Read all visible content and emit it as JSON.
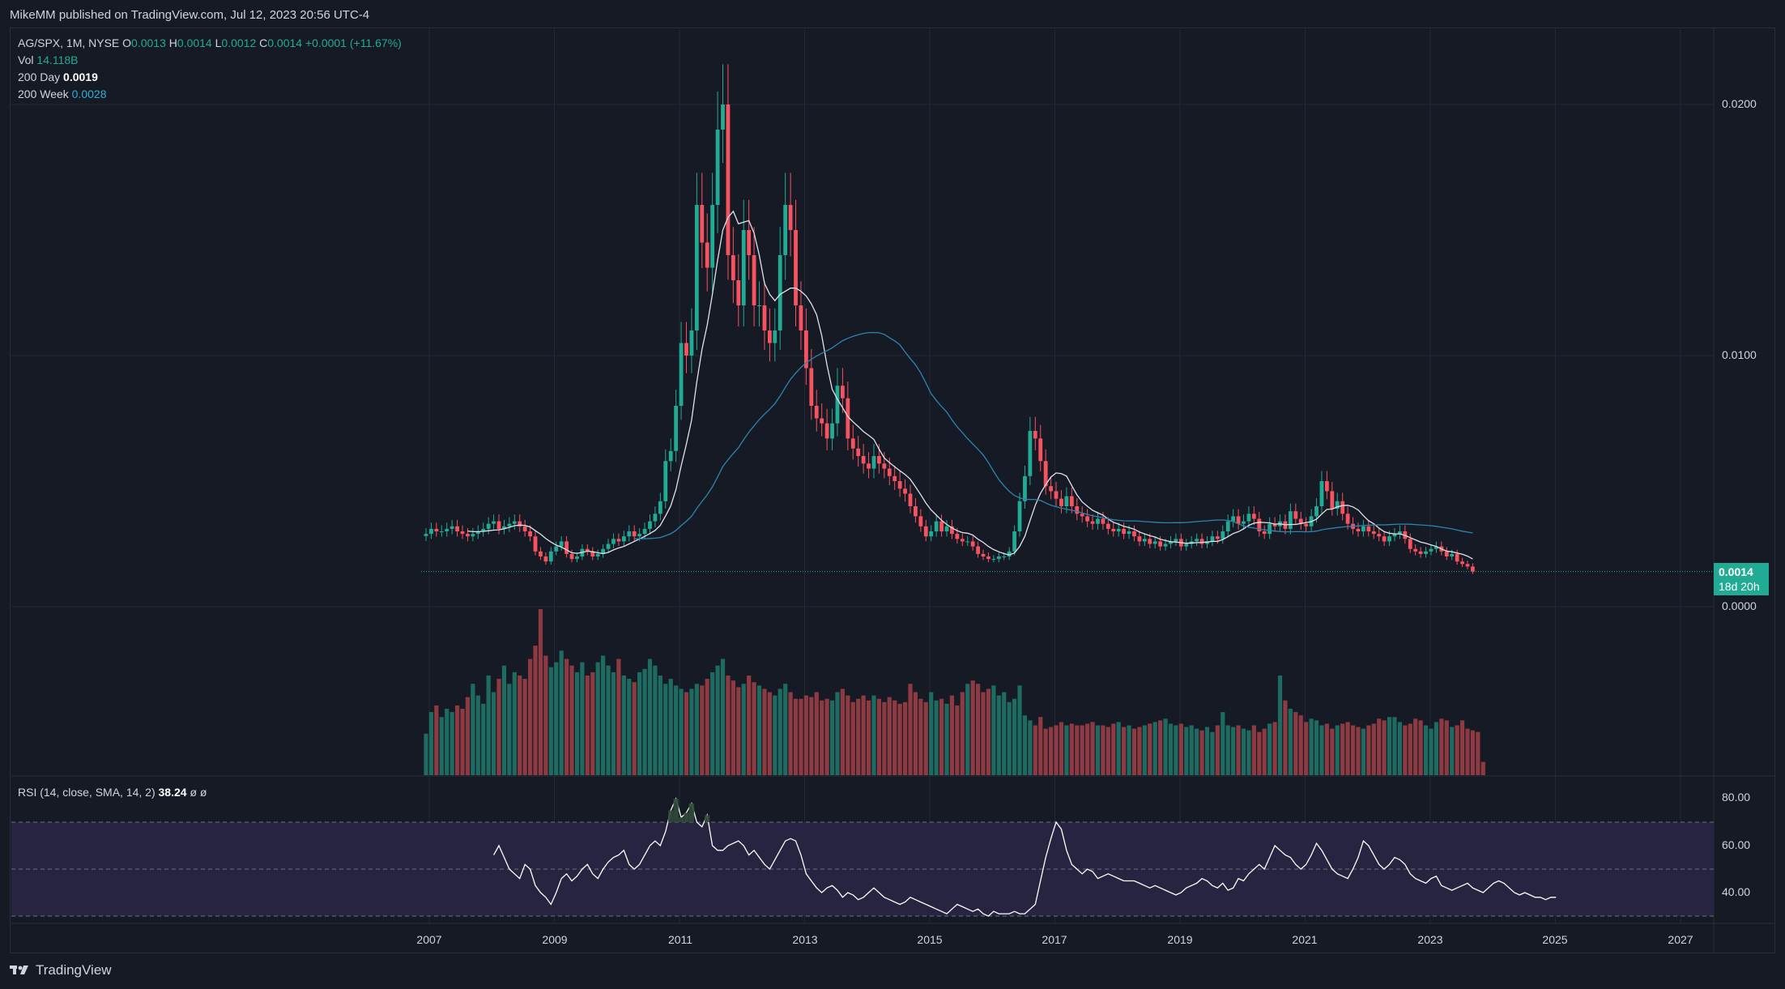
{
  "header": {
    "publish_text": "MikeMM published on TradingView.com, Jul 12, 2023 20:56 UTC-4"
  },
  "legend": {
    "symbol": "AG/SPX, 1M, NYSE",
    "o_label": "O",
    "o_value": "0.0013",
    "h_label": "H",
    "h_value": "0.0014",
    "l_label": "L",
    "l_value": "0.0012",
    "c_label": "C",
    "c_value": "0.0014",
    "change": "+0.0001 (+11.67%)",
    "vol_label": "Vol",
    "vol_value": "14.118B",
    "ma1_label": "200 Day",
    "ma1_value": "0.0019",
    "ma2_label": "200 Week",
    "ma2_value": "0.0028",
    "rsi_label": "RSI (14, close, SMA, 14, 2)",
    "rsi_value": "38.24",
    "rsi_extra": "ø  ø"
  },
  "price_axis": [
    "0.0200",
    "0.0100",
    "0.0000"
  ],
  "rsi_axis": [
    "80.00",
    "60.00",
    "40.00"
  ],
  "time_axis": [
    "2007",
    "2009",
    "2011",
    "2013",
    "2015",
    "2017",
    "2019",
    "2021",
    "2023",
    "2025",
    "2027"
  ],
  "price_badge": {
    "price": "0.0014",
    "countdown": "18d 20h"
  },
  "footer": {
    "brand": "TradingView"
  },
  "colors": {
    "up": "#22ab94",
    "down": "#f7525f",
    "vol_up": "#1e6b62",
    "vol_down": "#8e3a43",
    "ma_short": "#e0e3eb",
    "ma_long": "#2a86b0",
    "rsi_line": "#ffffff",
    "rsi_band": "#262440"
  },
  "chart_data": {
    "type": "candlestick",
    "symbol": "AG/SPX",
    "interval": "1M",
    "ylim": [
      0.0,
      0.021
    ],
    "x_range": [
      "2006-12",
      "2027-06"
    ],
    "close": [
      0.0029,
      0.0031,
      0.003,
      0.003,
      0.0031,
      0.0032,
      0.003,
      0.0029,
      0.0028,
      0.0029,
      0.003,
      0.0031,
      0.0033,
      0.0034,
      0.0031,
      0.0032,
      0.0033,
      0.0034,
      0.0032,
      0.003,
      0.0028,
      0.0022,
      0.002,
      0.0018,
      0.0022,
      0.0024,
      0.0026,
      0.0021,
      0.0019,
      0.002,
      0.0023,
      0.0022,
      0.002,
      0.0021,
      0.0023,
      0.0025,
      0.0027,
      0.0026,
      0.0028,
      0.003,
      0.0028,
      0.0029,
      0.0031,
      0.0034,
      0.0037,
      0.0042,
      0.0058,
      0.0062,
      0.008,
      0.0105,
      0.01,
      0.011,
      0.016,
      0.0145,
      0.0135,
      0.016,
      0.019,
      0.02,
      0.014,
      0.013,
      0.012,
      0.015,
      0.014,
      0.012,
      0.012,
      0.011,
      0.0105,
      0.011,
      0.014,
      0.016,
      0.015,
      0.012,
      0.011,
      0.0095,
      0.008,
      0.0075,
      0.0073,
      0.0067,
      0.0073,
      0.0088,
      0.0083,
      0.0067,
      0.0063,
      0.006,
      0.0057,
      0.0055,
      0.006,
      0.0057,
      0.0055,
      0.0052,
      0.005,
      0.0047,
      0.0045,
      0.004,
      0.0036,
      0.0032,
      0.0028,
      0.003,
      0.0034,
      0.003,
      0.0032,
      0.0029,
      0.0027,
      0.0026,
      0.0026,
      0.0024,
      0.0021,
      0.002,
      0.0019,
      0.0019,
      0.002,
      0.002,
      0.0022,
      0.003,
      0.0042,
      0.0052,
      0.007,
      0.0067,
      0.0058,
      0.0048,
      0.0046,
      0.0043,
      0.004,
      0.0044,
      0.004,
      0.0037,
      0.0036,
      0.0034,
      0.0033,
      0.0035,
      0.0033,
      0.0031,
      0.003,
      0.0031,
      0.0029,
      0.003,
      0.0028,
      0.0026,
      0.0027,
      0.0025,
      0.0026,
      0.0024,
      0.0025,
      0.0026,
      0.0027,
      0.0024,
      0.0025,
      0.0026,
      0.0027,
      0.0025,
      0.0026,
      0.0028,
      0.0027,
      0.003,
      0.0034,
      0.0036,
      0.0033,
      0.0034,
      0.0037,
      0.0035,
      0.003,
      0.0029,
      0.0033,
      0.0032,
      0.0034,
      0.0031,
      0.0038,
      0.0035,
      0.0033,
      0.0032,
      0.0036,
      0.004,
      0.005,
      0.0046,
      0.0039,
      0.0042,
      0.0037,
      0.0033,
      0.0031,
      0.003,
      0.0032,
      0.003,
      0.0029,
      0.0028,
      0.0026,
      0.0028,
      0.0029,
      0.003,
      0.0027,
      0.0023,
      0.0022,
      0.0021,
      0.0022,
      0.0023,
      0.0024,
      0.0022,
      0.002,
      0.0021,
      0.0018,
      0.0017,
      0.0016,
      0.0014
    ],
    "volume_relative": [
      0.25,
      0.38,
      0.42,
      0.35,
      0.4,
      0.38,
      0.42,
      0.4,
      0.47,
      0.55,
      0.48,
      0.43,
      0.6,
      0.5,
      0.58,
      0.66,
      0.55,
      0.62,
      0.6,
      0.58,
      0.7,
      0.78,
      1.0,
      0.72,
      0.65,
      0.68,
      0.75,
      0.7,
      0.66,
      0.62,
      0.68,
      0.6,
      0.62,
      0.68,
      0.72,
      0.66,
      0.62,
      0.7,
      0.6,
      0.58,
      0.56,
      0.62,
      0.64,
      0.7,
      0.66,
      0.6,
      0.55,
      0.58,
      0.54,
      0.52,
      0.5,
      0.52,
      0.55,
      0.54,
      0.58,
      0.62,
      0.66,
      0.7,
      0.6,
      0.57,
      0.53,
      0.55,
      0.6,
      0.56,
      0.54,
      0.52,
      0.5,
      0.48,
      0.52,
      0.55,
      0.5,
      0.46,
      0.46,
      0.48,
      0.47,
      0.5,
      0.45,
      0.46,
      0.45,
      0.5,
      0.52,
      0.48,
      0.44,
      0.46,
      0.48,
      0.45,
      0.48,
      0.46,
      0.44,
      0.47,
      0.45,
      0.43,
      0.44,
      0.55,
      0.5,
      0.46,
      0.44,
      0.5,
      0.45,
      0.46,
      0.43,
      0.48,
      0.42,
      0.5,
      0.55,
      0.57,
      0.55,
      0.5,
      0.52,
      0.54,
      0.48,
      0.5,
      0.44,
      0.46,
      0.54,
      0.36,
      0.33,
      0.3,
      0.35,
      0.28,
      0.29,
      0.3,
      0.32,
      0.3,
      0.31,
      0.3,
      0.3,
      0.31,
      0.32,
      0.3,
      0.3,
      0.29,
      0.31,
      0.32,
      0.29,
      0.3,
      0.28,
      0.29,
      0.3,
      0.31,
      0.32,
      0.33,
      0.34,
      0.31,
      0.3,
      0.31,
      0.29,
      0.3,
      0.28,
      0.27,
      0.29,
      0.26,
      0.3,
      0.38,
      0.3,
      0.29,
      0.3,
      0.28,
      0.27,
      0.3,
      0.26,
      0.28,
      0.31,
      0.32,
      0.6,
      0.45,
      0.4,
      0.38,
      0.36,
      0.32,
      0.34,
      0.33,
      0.3,
      0.31,
      0.28,
      0.3,
      0.31,
      0.32,
      0.3,
      0.29,
      0.28,
      0.3,
      0.31,
      0.34,
      0.33,
      0.35,
      0.35,
      0.32,
      0.3,
      0.31,
      0.34,
      0.33,
      0.3,
      0.28,
      0.32,
      0.34,
      0.33,
      0.29,
      0.3,
      0.33,
      0.28,
      0.27,
      0.26,
      0.08
    ],
    "rsi": [
      56,
      60,
      55,
      50,
      48,
      46,
      52,
      50,
      43,
      40,
      38,
      35,
      40,
      46,
      48,
      45,
      47,
      50,
      52,
      48,
      46,
      50,
      53,
      55,
      56,
      58,
      52,
      50,
      52,
      56,
      60,
      62,
      60,
      66,
      75,
      80,
      72,
      74,
      78,
      70,
      68,
      73,
      60,
      58,
      58,
      60,
      61,
      62,
      60,
      56,
      58,
      55,
      52,
      50,
      54,
      58,
      62,
      63,
      62,
      56,
      48,
      45,
      42,
      40,
      42,
      43,
      41,
      38,
      40,
      39,
      37,
      38,
      40,
      42,
      40,
      38,
      37,
      36,
      35,
      36,
      38,
      37,
      36,
      35,
      34,
      33,
      32,
      31,
      33,
      35,
      34,
      33,
      32,
      33,
      31,
      30,
      32,
      31,
      31,
      31,
      32,
      31,
      31,
      33,
      35,
      45,
      55,
      63,
      70,
      67,
      58,
      52,
      50,
      48,
      50,
      49,
      46,
      47,
      48,
      47,
      46,
      45,
      45,
      45,
      44,
      43,
      42,
      43,
      42,
      41,
      40,
      39,
      40,
      42,
      43,
      44,
      46,
      45,
      43,
      42,
      44,
      41,
      42,
      46,
      45,
      48,
      50,
      52,
      50,
      55,
      60,
      58,
      56,
      55,
      52,
      50,
      52,
      56,
      61,
      58,
      54,
      50,
      48,
      47,
      46,
      50,
      55,
      62,
      60,
      56,
      52,
      50,
      52,
      55,
      54,
      52,
      48,
      46,
      45,
      44,
      46,
      47,
      43,
      42,
      41,
      42,
      43,
      44,
      42,
      41,
      40,
      42,
      44,
      45,
      44,
      42,
      40,
      39,
      40,
      39,
      38,
      38,
      37,
      38,
      38
    ]
  }
}
